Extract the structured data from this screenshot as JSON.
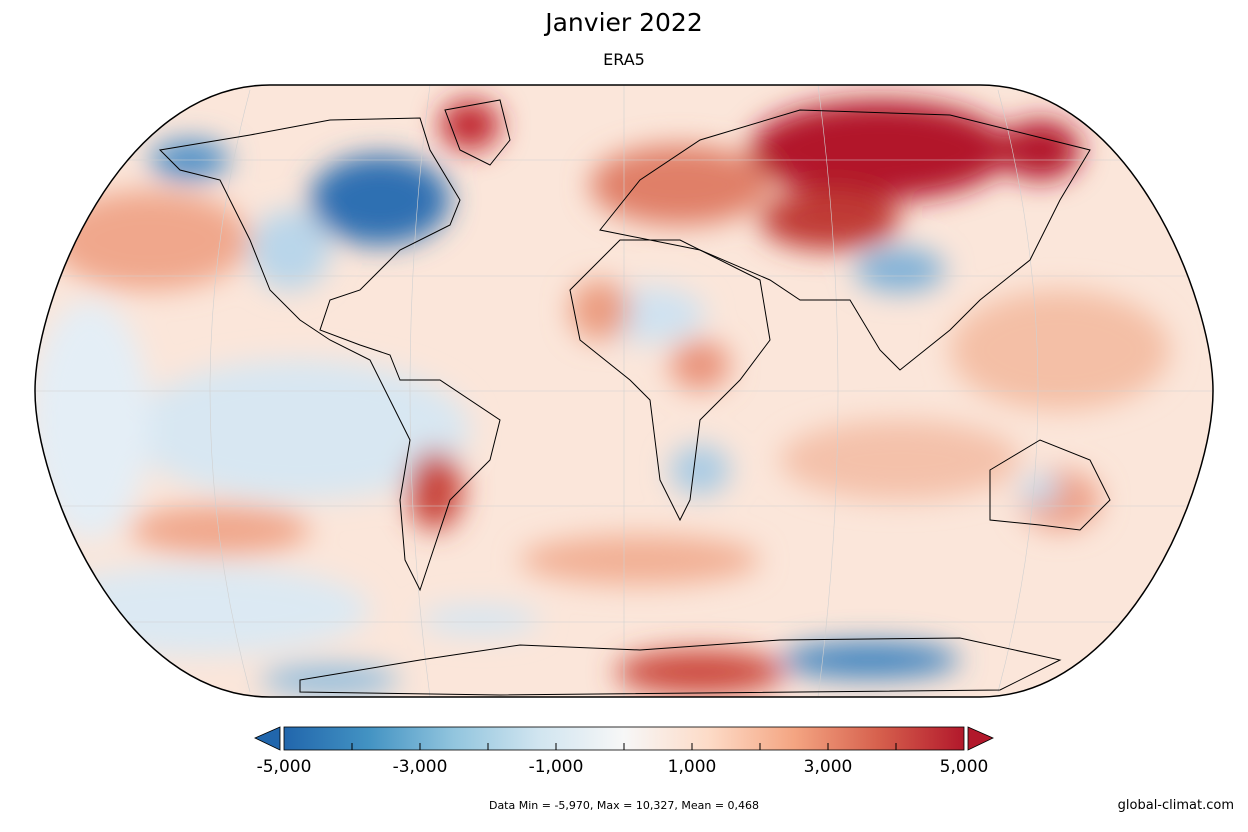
{
  "title": "Janvier 2022",
  "subtitle": "ERA5",
  "colorbar": {
    "min": -5000,
    "max": 5000,
    "tick_labels": [
      "-5,000",
      "-3,000",
      "-1,000",
      "1,000",
      "3,000",
      "5,000"
    ],
    "colors": [
      "#2166ac",
      "#4393c3",
      "#92c5de",
      "#d1e5f0",
      "#f7f7f7",
      "#fddbc7",
      "#f4a582",
      "#d6604d",
      "#b2182b"
    ],
    "extend": "both"
  },
  "stats": "Data Min = -5,970, Max = 10,327, Mean = 0,468",
  "credit": "global-climat.com"
}
